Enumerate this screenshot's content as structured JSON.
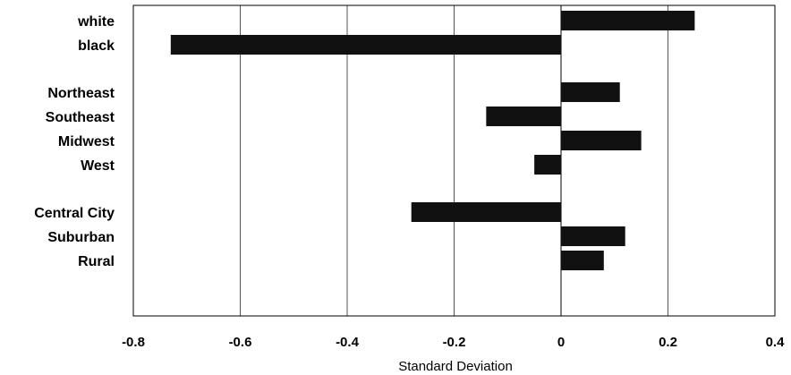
{
  "chart_data": {
    "type": "bar",
    "orientation": "horizontal",
    "title": "",
    "xlabel": "Standard Deviation",
    "ylabel": "",
    "xlim": [
      -0.8,
      0.4
    ],
    "xticks": [
      -0.8,
      -0.6,
      -0.4,
      -0.2,
      0,
      0.2,
      0.4
    ],
    "xtick_labels": [
      "-0.8",
      "-0.6",
      "-0.4",
      "-0.2",
      "0",
      "0.2",
      "0.4"
    ],
    "grid": "vertical",
    "legend": "none",
    "bar_color": "#111111",
    "categories": [
      "white",
      "black",
      "Northeast",
      "Southeast",
      "Midwest",
      "West",
      "Central City",
      "Suburban",
      "Rural"
    ],
    "values": [
      0.25,
      -0.73,
      0.11,
      -0.14,
      0.15,
      -0.05,
      -0.28,
      0.12,
      0.08
    ],
    "groups": [
      [
        "white",
        "black"
      ],
      [
        "Northeast",
        "Southeast",
        "Midwest",
        "West"
      ],
      [
        "Central City",
        "Suburban",
        "Rural"
      ]
    ]
  }
}
